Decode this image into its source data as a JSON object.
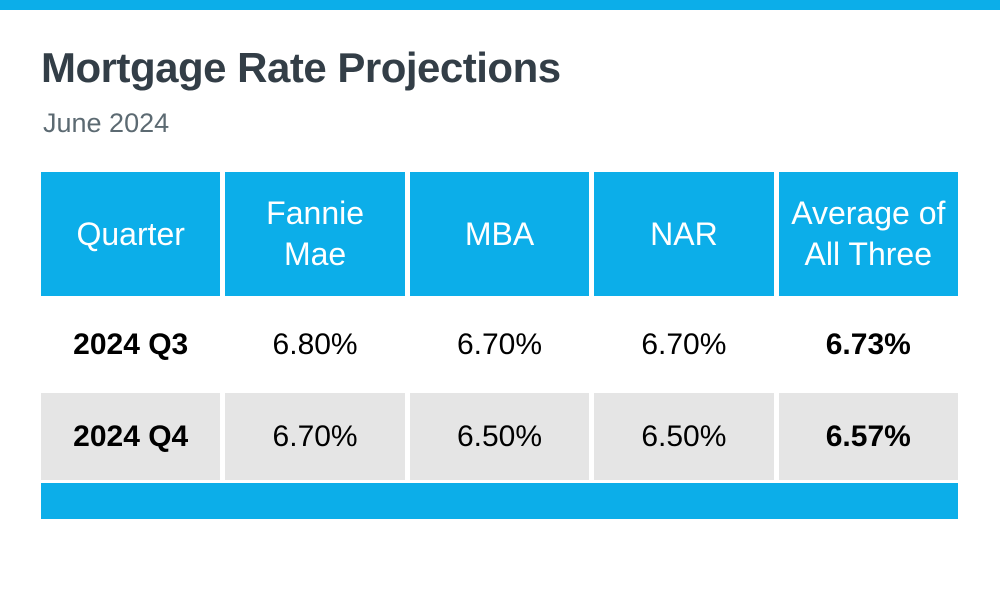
{
  "header": {
    "title": "Mortgage Rate Projections",
    "subtitle": "June 2024"
  },
  "colors": {
    "accent_blue": "#0caee9",
    "alt_row_gray": "#e5e5e5",
    "title_text": "#333e47",
    "subtitle_text": "#5c6a72",
    "header_text": "#ffffff",
    "body_text": "#000000"
  },
  "chart_data": {
    "type": "table",
    "title": "Mortgage Rate Projections",
    "subtitle": "June 2024",
    "columns": [
      "Quarter",
      "Fannie Mae",
      "MBA",
      "NAR",
      "Average of All Three"
    ],
    "rows": [
      [
        "2024 Q3",
        "6.80%",
        "6.70%",
        "6.70%",
        "6.73%"
      ],
      [
        "2024 Q4",
        "6.70%",
        "6.50%",
        "6.50%",
        "6.57%"
      ]
    ],
    "layout": {
      "bold_columns": [
        0,
        4
      ],
      "shaded_rows": [
        1
      ],
      "accent_bars": [
        "page-top",
        "table-bottom"
      ]
    }
  }
}
